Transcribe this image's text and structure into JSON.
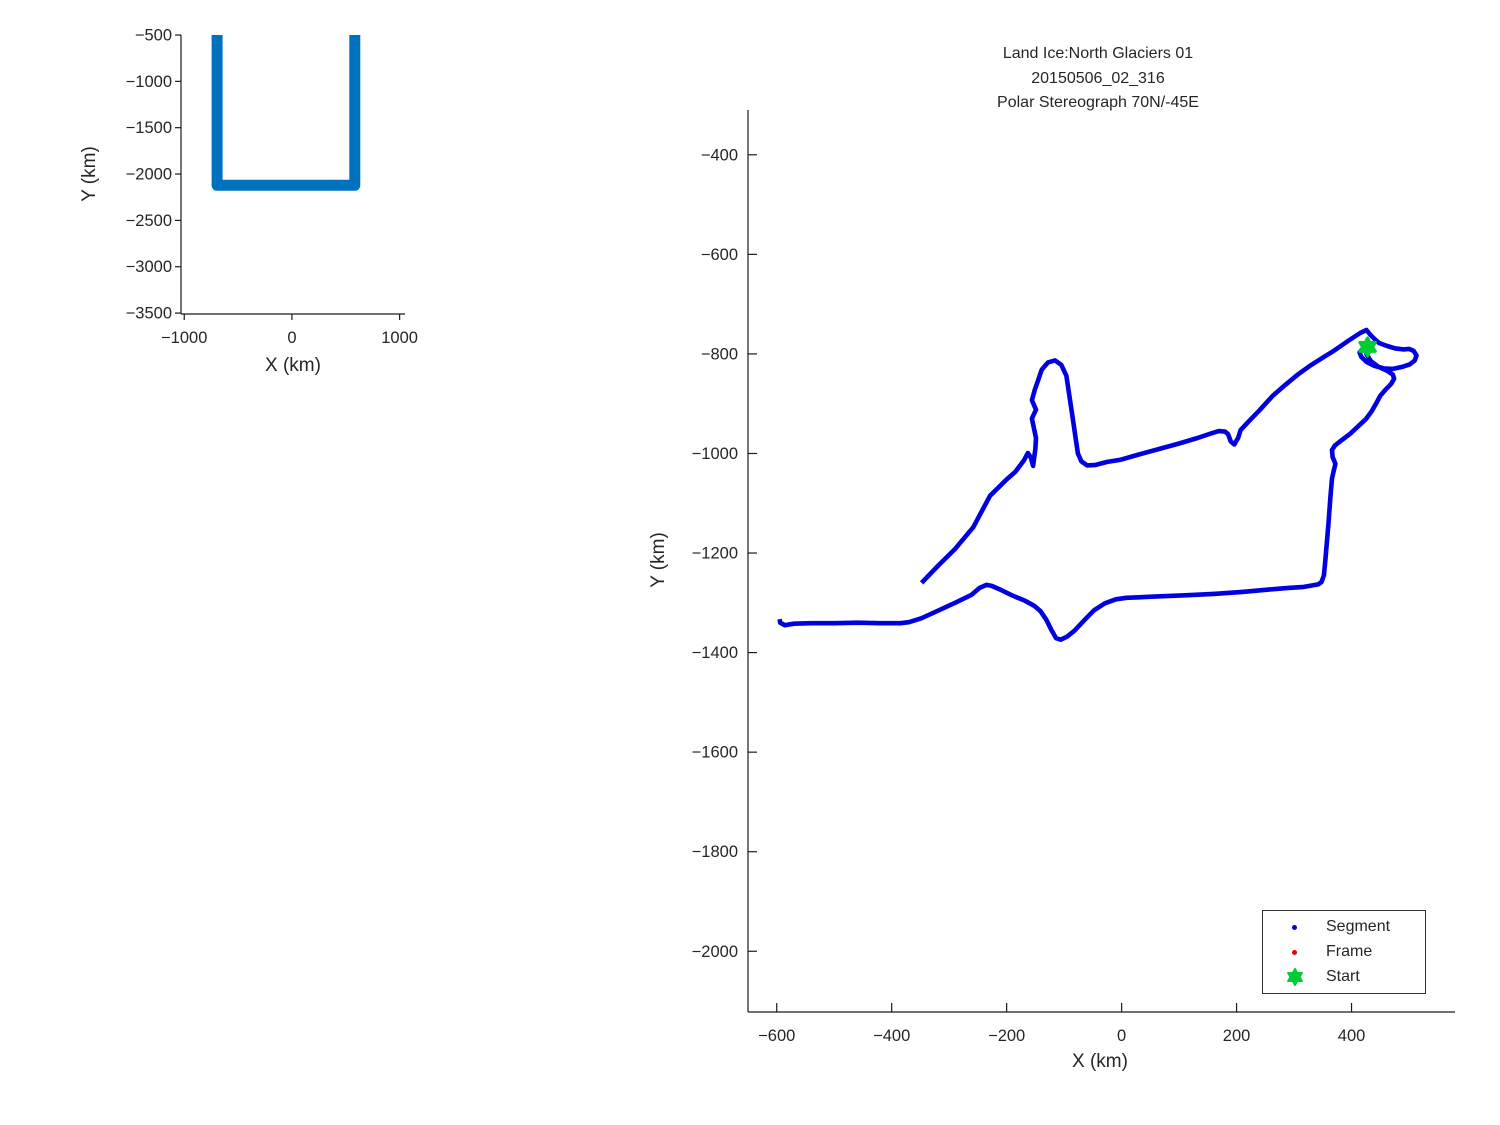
{
  "page": {
    "background": "#ffffff"
  },
  "chart_data": [
    {
      "id": "overview",
      "type": "line",
      "title": "",
      "xlabel": "X (km)",
      "ylabel": "Y (km)",
      "xlim": [
        -1030,
        1050
      ],
      "ylim": [
        -3510,
        -500
      ],
      "grid": false,
      "xticks": [
        {
          "v": -1000,
          "label": "−1000"
        },
        {
          "v": 0,
          "label": "0"
        },
        {
          "v": 1000,
          "label": "1000"
        }
      ],
      "yticks": [
        {
          "v": -500,
          "label": "−500"
        },
        {
          "v": -1000,
          "label": "−1000"
        },
        {
          "v": -1500,
          "label": "−1500"
        },
        {
          "v": -2000,
          "label": "−2000"
        },
        {
          "v": -2500,
          "label": "−2500"
        },
        {
          "v": -3000,
          "label": "−3000"
        },
        {
          "v": -3500,
          "label": "−3500"
        }
      ],
      "line_color": "#0072BD",
      "line_width": 11,
      "points": [
        [
          -695,
          -500
        ],
        [
          -695,
          -2122
        ],
        [
          584,
          -2122
        ],
        [
          584,
          -500
        ]
      ]
    },
    {
      "id": "detail",
      "type": "line",
      "title_lines": [
        "Land Ice:North Glaciers 01",
        "20150506_02_316",
        "Polar Stereograph 70N/-45E"
      ],
      "xlabel": "X (km)",
      "ylabel": "Y (km)",
      "xlim": [
        -650,
        580
      ],
      "ylim": [
        -2122,
        -310
      ],
      "grid": false,
      "xticks": [
        {
          "v": -600,
          "label": "−600"
        },
        {
          "v": -400,
          "label": "−400"
        },
        {
          "v": -200,
          "label": "−200"
        },
        {
          "v": 0,
          "label": "0"
        },
        {
          "v": 200,
          "label": "200"
        },
        {
          "v": 400,
          "label": "400"
        }
      ],
      "yticks": [
        {
          "v": -400,
          "label": "−400"
        },
        {
          "v": -600,
          "label": "−600"
        },
        {
          "v": -800,
          "label": "−800"
        },
        {
          "v": -1000,
          "label": "−1000"
        },
        {
          "v": -1200,
          "label": "−1200"
        },
        {
          "v": -1400,
          "label": "−1400"
        },
        {
          "v": -1600,
          "label": "−1600"
        },
        {
          "v": -1800,
          "label": "−1800"
        },
        {
          "v": -2000,
          "label": "−2000"
        }
      ],
      "line_color": "#0000E0",
      "line_width": 4.6,
      "points": [
        [
          -348,
          -1260
        ],
        [
          -318,
          -1224
        ],
        [
          -290,
          -1192
        ],
        [
          -258,
          -1148
        ],
        [
          -229,
          -1085
        ],
        [
          -200,
          -1052
        ],
        [
          -185,
          -1037
        ],
        [
          -170,
          -1014
        ],
        [
          -163,
          -999
        ],
        [
          -158,
          -1008
        ],
        [
          -154,
          -1025
        ],
        [
          -150,
          -990
        ],
        [
          -149,
          -969
        ],
        [
          -156,
          -930
        ],
        [
          -149,
          -912
        ],
        [
          -156,
          -893
        ],
        [
          -151,
          -872
        ],
        [
          -145,
          -852
        ],
        [
          -139,
          -832
        ],
        [
          -128,
          -817
        ],
        [
          -116,
          -813
        ],
        [
          -105,
          -822
        ],
        [
          -96,
          -844
        ],
        [
          -92,
          -875
        ],
        [
          -87,
          -914
        ],
        [
          -83,
          -945
        ],
        [
          -80,
          -969
        ],
        [
          -76,
          -1000
        ],
        [
          -70,
          -1016
        ],
        [
          -60,
          -1024
        ],
        [
          -45,
          -1023
        ],
        [
          -25,
          -1017
        ],
        [
          -3,
          -1013
        ],
        [
          30,
          -1002
        ],
        [
          65,
          -991
        ],
        [
          100,
          -980
        ],
        [
          132,
          -969
        ],
        [
          155,
          -960
        ],
        [
          169,
          -955
        ],
        [
          180,
          -956
        ],
        [
          185,
          -961
        ],
        [
          190,
          -976
        ],
        [
          196,
          -982
        ],
        [
          203,
          -968
        ],
        [
          207,
          -953
        ],
        [
          220,
          -937
        ],
        [
          240,
          -913
        ],
        [
          263,
          -884
        ],
        [
          285,
          -862
        ],
        [
          306,
          -842
        ],
        [
          330,
          -822
        ],
        [
          352,
          -806
        ],
        [
          369,
          -794
        ],
        [
          395,
          -773
        ],
        [
          415,
          -758
        ],
        [
          426,
          -752
        ],
        [
          433,
          -762
        ],
        [
          441,
          -771
        ],
        [
          448,
          -778
        ],
        [
          462,
          -784
        ],
        [
          476,
          -789
        ],
        [
          490,
          -791
        ],
        [
          500,
          -790
        ],
        [
          508,
          -794
        ],
        [
          513,
          -803
        ],
        [
          510,
          -813
        ],
        [
          501,
          -821
        ],
        [
          488,
          -826
        ],
        [
          472,
          -830
        ],
        [
          456,
          -829
        ],
        [
          440,
          -824
        ],
        [
          426,
          -816
        ],
        [
          417,
          -806
        ],
        [
          414,
          -797
        ],
        [
          420,
          -789
        ],
        [
          428,
          -786
        ],
        [
          426,
          -801
        ],
        [
          434,
          -815
        ],
        [
          447,
          -826
        ],
        [
          462,
          -834
        ],
        [
          472,
          -842
        ],
        [
          474,
          -850
        ],
        [
          469,
          -860
        ],
        [
          459,
          -872
        ],
        [
          450,
          -884
        ],
        [
          443,
          -899
        ],
        [
          435,
          -915
        ],
        [
          425,
          -931
        ],
        [
          412,
          -945
        ],
        [
          398,
          -960
        ],
        [
          381,
          -975
        ],
        [
          371,
          -984
        ],
        [
          366,
          -993
        ],
        [
          367,
          -1007
        ],
        [
          372,
          -1021
        ],
        [
          369,
          -1035
        ],
        [
          366,
          -1050
        ],
        [
          363,
          -1090
        ],
        [
          360,
          -1140
        ],
        [
          357,
          -1180
        ],
        [
          354,
          -1220
        ],
        [
          352,
          -1245
        ],
        [
          348,
          -1258
        ],
        [
          342,
          -1263
        ],
        [
          317,
          -1268
        ],
        [
          290,
          -1270
        ],
        [
          258,
          -1273
        ],
        [
          210,
          -1278
        ],
        [
          160,
          -1282
        ],
        [
          110,
          -1285
        ],
        [
          67,
          -1287
        ],
        [
          30,
          -1289
        ],
        [
          8,
          -1290
        ],
        [
          -10,
          -1293
        ],
        [
          -29,
          -1301
        ],
        [
          -48,
          -1315
        ],
        [
          -65,
          -1335
        ],
        [
          -82,
          -1356
        ],
        [
          -95,
          -1368
        ],
        [
          -106,
          -1374
        ],
        [
          -114,
          -1371
        ],
        [
          -122,
          -1355
        ],
        [
          -131,
          -1334
        ],
        [
          -141,
          -1317
        ],
        [
          -152,
          -1306
        ],
        [
          -168,
          -1296
        ],
        [
          -189,
          -1286
        ],
        [
          -210,
          -1274
        ],
        [
          -226,
          -1266
        ],
        [
          -235,
          -1264
        ],
        [
          -247,
          -1270
        ],
        [
          -261,
          -1284
        ],
        [
          -288,
          -1299
        ],
        [
          -318,
          -1315
        ],
        [
          -348,
          -1331
        ],
        [
          -370,
          -1339
        ],
        [
          -385,
          -1341
        ],
        [
          -420,
          -1341
        ],
        [
          -460,
          -1340
        ],
        [
          -500,
          -1341
        ],
        [
          -540,
          -1341
        ],
        [
          -570,
          -1342
        ],
        [
          -586,
          -1345
        ],
        [
          -594,
          -1340
        ],
        [
          -595,
          -1333
        ]
      ],
      "start_point": {
        "x": 428,
        "y": -786,
        "color": "#00CC33"
      },
      "legend": {
        "items": [
          {
            "label": "Segment",
            "marker": "dot",
            "color": "#0000E0"
          },
          {
            "label": "Frame",
            "marker": "dot",
            "color": "#E60000"
          },
          {
            "label": "Start",
            "marker": "hexagram",
            "color": "#00CC33"
          }
        ]
      }
    }
  ]
}
